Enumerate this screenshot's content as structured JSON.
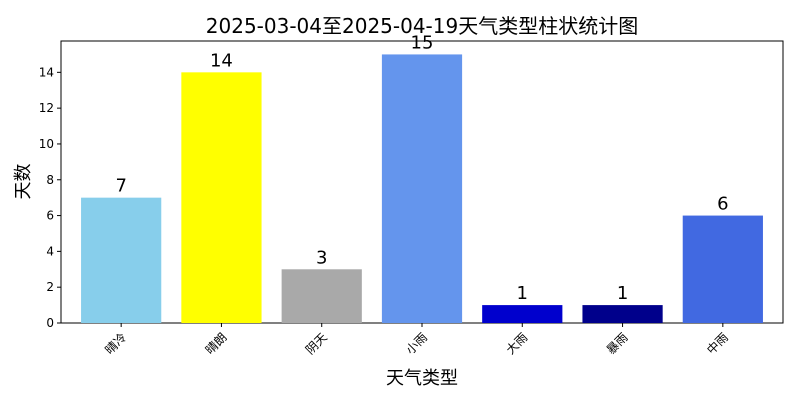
{
  "chart_data": {
    "type": "bar",
    "title": "2025-03-04至2025-04-19天气类型柱状统计图",
    "xlabel": "天气类型",
    "ylabel": "天数",
    "categories": [
      "晴冷",
      "晴朗",
      "阴天",
      "小雨",
      "大雨",
      "暴雨",
      "中雨"
    ],
    "values": [
      7,
      14,
      3,
      15,
      1,
      1,
      6
    ],
    "colors": [
      "#87CEEB",
      "#FFFF00",
      "#A9A9A9",
      "#6495ED",
      "#0000CD",
      "#00008B",
      "#4169E1"
    ],
    "yticks": [
      0,
      2,
      4,
      6,
      8,
      10,
      12,
      14
    ],
    "ylim": [
      0,
      15.75
    ],
    "grid": false
  }
}
